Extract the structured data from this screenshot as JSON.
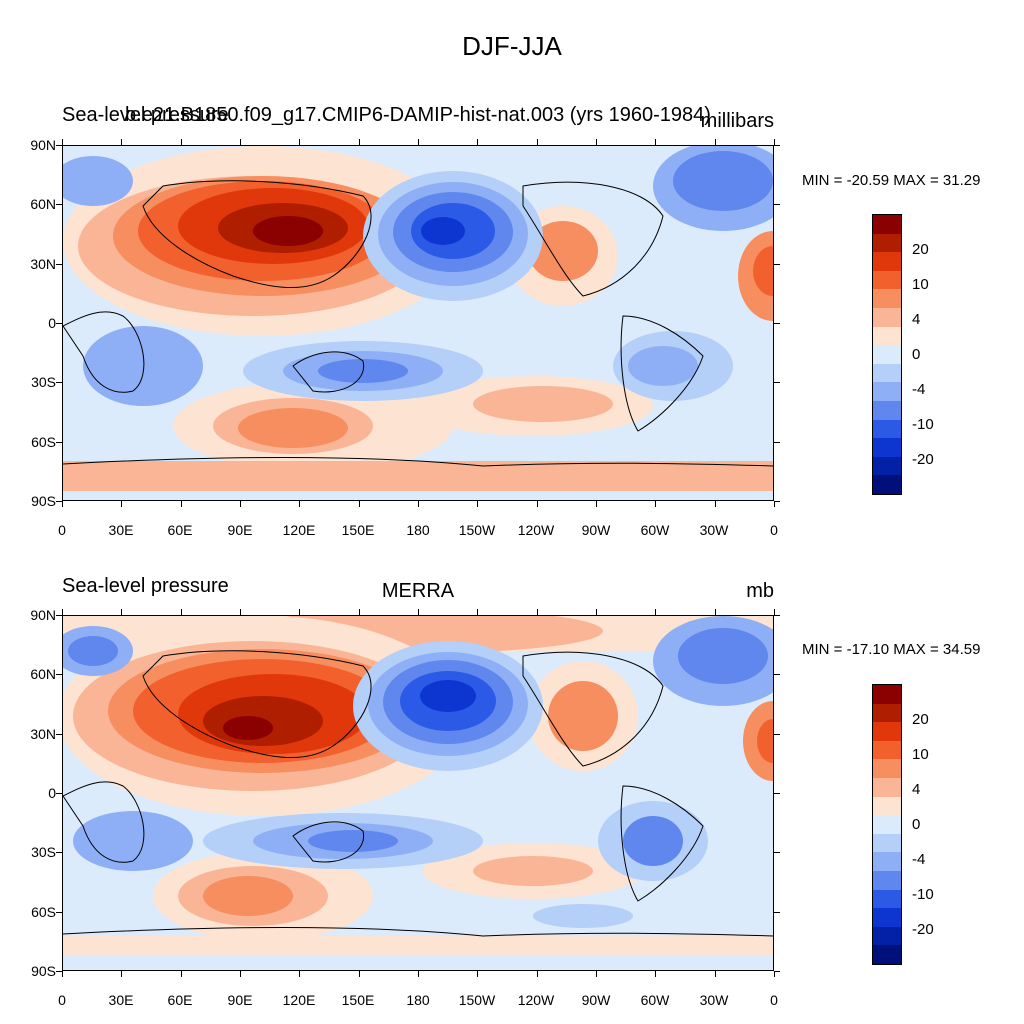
{
  "figure_title": "DJF-JJA",
  "panels": [
    {
      "left_title": "Sea-level pressure",
      "center_title": "b.e21.B1850.f09_g17.CMIP6-DAMIP-hist-nat.003 (yrs 1960-1984)",
      "units": "millibars",
      "min_label": "MIN = -20.59",
      "max_label": "MAX =  31.29"
    },
    {
      "left_title": "Sea-level pressure",
      "center_title": "MERRA",
      "units": "mb",
      "min_label": "MIN = -17.10",
      "max_label": "MAX =  34.59"
    }
  ],
  "lat_labels": [
    "90N",
    "60N",
    "30N",
    "0",
    "30S",
    "60S",
    "90S"
  ],
  "lon_labels": [
    "0",
    "30E",
    "60E",
    "90E",
    "120E",
    "150E",
    "180",
    "150W",
    "120W",
    "90W",
    "60W",
    "30W",
    "0"
  ],
  "colorbar_labels": [
    "20",
    "10",
    "4",
    "0",
    "-4",
    "-10",
    "-20"
  ],
  "colorbar_colors": [
    "#8b0000",
    "#b01e00",
    "#e0380a",
    "#f2602e",
    "#f68e60",
    "#f9b596",
    "#fde3d2",
    "#dcebfb",
    "#b4cff8",
    "#8eaff5",
    "#5f87ee",
    "#2b5ae6",
    "#0d36d0",
    "#0221a6",
    "#00107a"
  ]
}
